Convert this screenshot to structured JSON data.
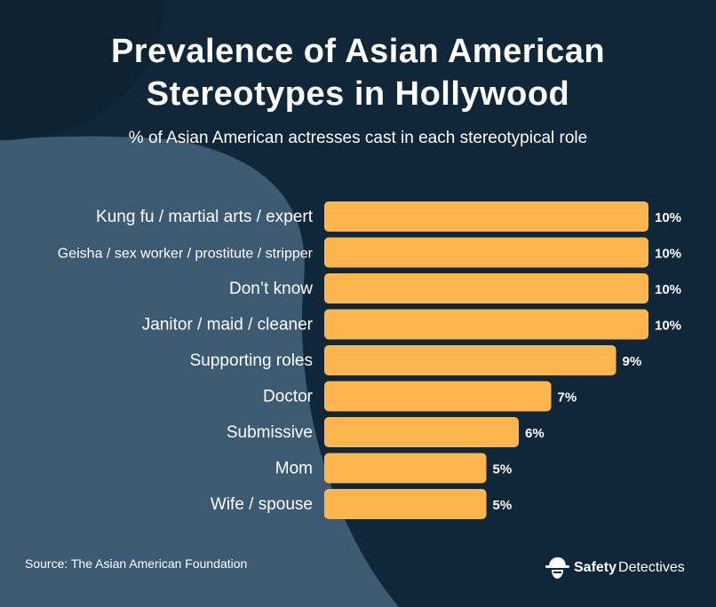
{
  "chart_data": {
    "type": "bar",
    "orientation": "horizontal",
    "title": "Prevalence of Asian American Stereotypes in Hollywood",
    "title_lines": [
      "Prevalence of Asian American",
      "Stereotypes in Hollywood"
    ],
    "subtitle": "% of Asian American actresses cast in each stereotypical role",
    "categories": [
      "Kung fu / martial arts / expert",
      "Geisha / sex worker / prostitute / stripper",
      "Don’t know",
      "Janitor / maid / cleaner",
      "Supporting roles",
      "Doctor",
      "Submissive",
      "Mom",
      "Wife / spouse"
    ],
    "values": [
      10,
      10,
      10,
      10,
      9,
      7,
      6,
      5,
      5
    ],
    "value_labels": [
      "10%",
      "10%",
      "10%",
      "10%",
      "9%",
      "7%",
      "6%",
      "5%",
      "5%"
    ],
    "unit": "%",
    "xlim": [
      0,
      10
    ],
    "grid": false,
    "bar_color": "#fdb64e"
  },
  "source": "Source: The Asian American Foundation",
  "brand": {
    "name_bold": "Safety",
    "name_regular": "Detectives",
    "icon": "detective-hat-icon"
  },
  "colors": {
    "background": "#3d5a73",
    "dark": "#0f2738",
    "text": "#ffffff",
    "bar": "#fdb64e"
  }
}
